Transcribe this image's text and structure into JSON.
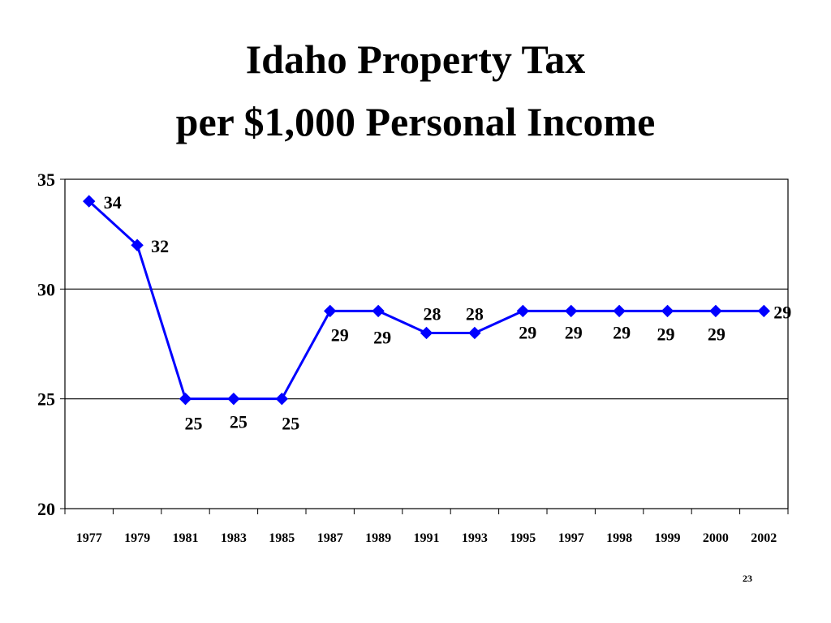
{
  "slide": {
    "title_line_1": "Idaho Property Tax",
    "title_line_2": "per $1,000 Personal Income",
    "page_number": "23"
  },
  "chart_data": {
    "type": "line",
    "title": "Idaho Property Tax per $1,000 Personal Income",
    "categories": [
      "1977",
      "1979",
      "1981",
      "1983",
      "1985",
      "1987",
      "1989",
      "1991",
      "1993",
      "1995",
      "1997",
      "1998",
      "1999",
      "2000",
      "2002"
    ],
    "series": [
      {
        "values": [
          34,
          32,
          25,
          25,
          25,
          29,
          29,
          28,
          28,
          29,
          29,
          29,
          29,
          29,
          29
        ],
        "color": "#0000FF",
        "marker": "diamond"
      }
    ],
    "ylim": [
      20,
      35
    ],
    "yticks": [
      20,
      25,
      30,
      35
    ],
    "grid": "horizontal",
    "data_labels": true,
    "xlabel": "",
    "ylabel": ""
  }
}
